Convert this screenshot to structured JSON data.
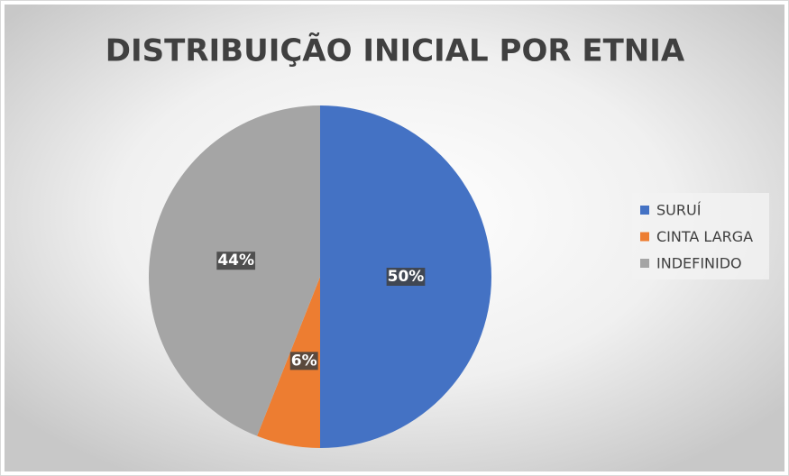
{
  "chart_data": {
    "type": "pie",
    "title": "DISTRIBUIÇÃO INICIAL POR ETNIA",
    "categories": [
      "SURUÍ",
      "CINTA LARGA",
      "INDEFINIDO"
    ],
    "values": [
      50,
      6,
      44
    ],
    "value_labels": [
      "50%",
      "6%",
      "44%"
    ],
    "colors": [
      "#4472c4",
      "#ed7d31",
      "#a5a5a5"
    ]
  }
}
